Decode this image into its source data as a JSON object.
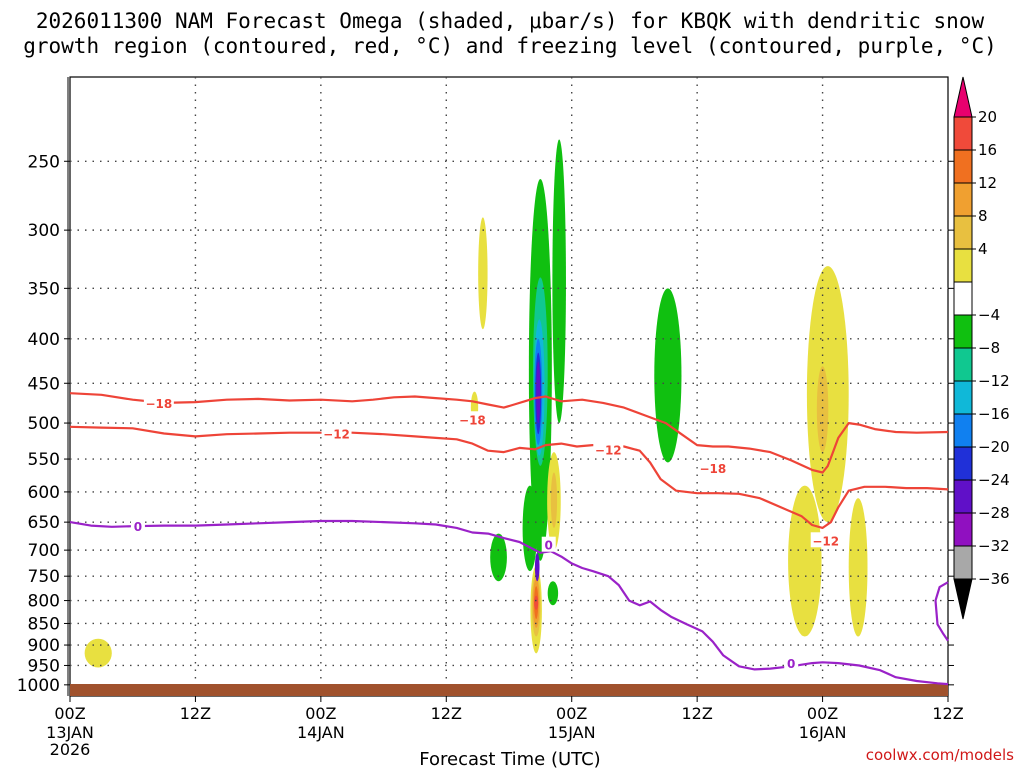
{
  "chart_data": {
    "type": "contour",
    "title": {
      "line1": "2026011300 NAM Forecast Omega (shaded, μbar/s) for KBQK with dendritic snow",
      "line2": "growth region (contoured, red, °C) and freezing level (contoured, purple, °C)"
    },
    "xlabel": "Forecast Time (UTC)",
    "credit": "coolwx.com/models",
    "x_unit": "forecast hour",
    "xlim": [
      0,
      84
    ],
    "y_unit": "hPa",
    "ylim": [
      1030,
      200
    ],
    "x_ticks": [
      {
        "hour": 0,
        "label": "00Z",
        "date": "13JAN",
        "year": "2026"
      },
      {
        "hour": 12,
        "label": "12Z"
      },
      {
        "hour": 24,
        "label": "00Z",
        "date": "14JAN"
      },
      {
        "hour": 36,
        "label": "12Z"
      },
      {
        "hour": 48,
        "label": "00Z",
        "date": "15JAN"
      },
      {
        "hour": 60,
        "label": "12Z"
      },
      {
        "hour": 72,
        "label": "00Z",
        "date": "16JAN"
      },
      {
        "hour": 84,
        "label": "12Z"
      }
    ],
    "y_ticks": [
      250,
      300,
      350,
      400,
      450,
      500,
      550,
      600,
      650,
      700,
      750,
      800,
      850,
      900,
      950,
      1000
    ],
    "colorbar": {
      "labels": [
        "20",
        "16",
        "12",
        "8",
        "4",
        "−4",
        "−8",
        "−12",
        "−16",
        "−20",
        "−24",
        "−28",
        "−32",
        "−36"
      ],
      "colors": [
        "#e8006e",
        "#f04a3a",
        "#f07020",
        "#f0a030",
        "#e8c040",
        "#e8e040",
        "#ffffff",
        "#10c010",
        "#10c890",
        "#10b8d8",
        "#1080f0",
        "#2030d8",
        "#6010c8",
        "#9010c0",
        "#a8a8a8",
        "#000000"
      ]
    },
    "series": [
      {
        "name": "-18C isotherm",
        "kind": "dendritic",
        "color": "#ee4438",
        "label": "−18",
        "points": [
          [
            0,
            462
          ],
          [
            3,
            464
          ],
          [
            6,
            470
          ],
          [
            9,
            474
          ],
          [
            12,
            473
          ],
          [
            15,
            470
          ],
          [
            18,
            469
          ],
          [
            21,
            471
          ],
          [
            24,
            470
          ],
          [
            27,
            472
          ],
          [
            29,
            470
          ],
          [
            31,
            467
          ],
          [
            33,
            466
          ],
          [
            35,
            468
          ],
          [
            37,
            470
          ],
          [
            38.5,
            472
          ],
          [
            40,
            476
          ],
          [
            41.5,
            480
          ],
          [
            42.5,
            476
          ],
          [
            43.5,
            472
          ],
          [
            44.5,
            468
          ],
          [
            45.5,
            466
          ],
          [
            47,
            472
          ],
          [
            49,
            470
          ],
          [
            51,
            474
          ],
          [
            53,
            480
          ],
          [
            55,
            490
          ],
          [
            57,
            500
          ],
          [
            58.5,
            515
          ],
          [
            60,
            530
          ],
          [
            61.5,
            532
          ],
          [
            63,
            532
          ],
          [
            65,
            535
          ],
          [
            67,
            540
          ],
          [
            69,
            552
          ],
          [
            71,
            566
          ],
          [
            72,
            570
          ],
          [
            72.5,
            560
          ],
          [
            73,
            540
          ],
          [
            73.5,
            520
          ],
          [
            74.5,
            500
          ],
          [
            75.5,
            502
          ],
          [
            77,
            508
          ],
          [
            79,
            512
          ],
          [
            81,
            513
          ],
          [
            84,
            512
          ]
        ]
      },
      {
        "name": "-12C isotherm",
        "kind": "dendritic",
        "color": "#ee4438",
        "label": "−12",
        "points": [
          [
            0,
            505
          ],
          [
            3,
            506
          ],
          [
            6,
            507
          ],
          [
            9,
            514
          ],
          [
            12,
            518
          ],
          [
            15,
            515
          ],
          [
            18,
            514
          ],
          [
            21,
            513
          ],
          [
            24,
            513
          ],
          [
            27,
            513
          ],
          [
            30,
            515
          ],
          [
            33,
            518
          ],
          [
            35,
            520
          ],
          [
            37,
            522
          ],
          [
            38.5,
            528
          ],
          [
            40,
            538
          ],
          [
            41.5,
            540
          ],
          [
            43,
            534
          ],
          [
            44.5,
            536
          ],
          [
            45.5,
            530
          ],
          [
            47,
            528
          ],
          [
            48.5,
            532
          ],
          [
            50,
            530
          ],
          [
            51.5,
            530
          ],
          [
            53,
            532
          ],
          [
            54.5,
            538
          ],
          [
            55.5,
            555
          ],
          [
            56.5,
            580
          ],
          [
            58,
            598
          ],
          [
            60,
            602
          ],
          [
            62,
            602
          ],
          [
            64,
            603
          ],
          [
            66,
            610
          ],
          [
            68,
            625
          ],
          [
            70,
            640
          ],
          [
            71,
            655
          ],
          [
            72,
            660
          ],
          [
            72.8,
            650
          ],
          [
            73.5,
            625
          ],
          [
            74.5,
            598
          ],
          [
            76,
            592
          ],
          [
            78,
            592
          ],
          [
            80,
            594
          ],
          [
            82,
            594
          ],
          [
            84,
            596
          ]
        ]
      },
      {
        "name": "0C freezing level",
        "kind": "freezing",
        "color": "#9a22c8",
        "label": "0",
        "points": [
          [
            0,
            650
          ],
          [
            2,
            656
          ],
          [
            4,
            658
          ],
          [
            6,
            657
          ],
          [
            9,
            656
          ],
          [
            12,
            656
          ],
          [
            15,
            654
          ],
          [
            18,
            652
          ],
          [
            21,
            650
          ],
          [
            24,
            648
          ],
          [
            27,
            648
          ],
          [
            30,
            650
          ],
          [
            33,
            652
          ],
          [
            35,
            654
          ],
          [
            37,
            660
          ],
          [
            38.5,
            668
          ],
          [
            40,
            670
          ],
          [
            41.5,
            678
          ],
          [
            43,
            685
          ],
          [
            44,
            695
          ],
          [
            45,
            705
          ],
          [
            46,
            702
          ],
          [
            47,
            712
          ],
          [
            48,
            725
          ],
          [
            49,
            734
          ],
          [
            50,
            740
          ],
          [
            51.5,
            750
          ],
          [
            52.5,
            768
          ],
          [
            53.5,
            800
          ],
          [
            54.5,
            810
          ],
          [
            55.5,
            802
          ],
          [
            56.5,
            820
          ],
          [
            57.5,
            835
          ],
          [
            59,
            852
          ],
          [
            60.5,
            868
          ],
          [
            61.5,
            892
          ],
          [
            62.5,
            925
          ],
          [
            64,
            952
          ],
          [
            65.5,
            960
          ],
          [
            67,
            958
          ],
          [
            69,
            952
          ],
          [
            71,
            944
          ],
          [
            72,
            942
          ],
          [
            73.5,
            944
          ],
          [
            75.5,
            950
          ],
          [
            77.5,
            962
          ],
          [
            79,
            980
          ],
          [
            81,
            990
          ],
          [
            83,
            996
          ],
          [
            84,
            998
          ]
        ]
      },
      {
        "name": "0C freezing level (right edge)",
        "kind": "freezing",
        "color": "#9a22c8",
        "label": "",
        "points": [
          [
            84,
            762
          ],
          [
            83.2,
            772
          ],
          [
            82.8,
            800
          ],
          [
            83,
            852
          ],
          [
            83.5,
            872
          ],
          [
            84,
            890
          ]
        ]
      }
    ],
    "omega_cells": [
      {
        "hour": 39.5,
        "p_top": 290,
        "p_bot": 390,
        "halfwidth_h": 0.45,
        "color": "#e8e040"
      },
      {
        "hour": 38.7,
        "p_top": 460,
        "p_bot": 500,
        "halfwidth_h": 0.35,
        "color": "#e8e040"
      },
      {
        "hour": 2.7,
        "p_top": 885,
        "p_bot": 955,
        "halfwidth_h": 1.3,
        "color": "#e8e040"
      },
      {
        "hour": 45.0,
        "p_top": 262,
        "p_bot": 720,
        "halfwidth_h": 1.1,
        "color": "#10c010"
      },
      {
        "hour": 46.8,
        "p_top": 236,
        "p_bot": 500,
        "halfwidth_h": 0.65,
        "color": "#10c010"
      },
      {
        "hour": 44.0,
        "p_top": 590,
        "p_bot": 740,
        "halfwidth_h": 0.7,
        "color": "#10c010"
      },
      {
        "hour": 41.0,
        "p_top": 670,
        "p_bot": 760,
        "halfwidth_h": 0.8,
        "color": "#10c010"
      },
      {
        "hour": 46.2,
        "p_top": 760,
        "p_bot": 810,
        "halfwidth_h": 0.5,
        "color": "#10c010"
      },
      {
        "hour": 57.2,
        "p_top": 350,
        "p_bot": 555,
        "halfwidth_h": 1.3,
        "color": "#10c010"
      },
      {
        "hour": 45.0,
        "p_top": 340,
        "p_bot": 560,
        "halfwidth_h": 0.7,
        "color": "#10c890"
      },
      {
        "hour": 44.9,
        "p_top": 380,
        "p_bot": 545,
        "halfwidth_h": 0.5,
        "color": "#10b8d8"
      },
      {
        "hour": 44.8,
        "p_top": 400,
        "p_bot": 530,
        "halfwidth_h": 0.38,
        "color": "#1080f0"
      },
      {
        "hour": 44.8,
        "p_top": 415,
        "p_bot": 515,
        "halfwidth_h": 0.28,
        "color": "#2030d8"
      },
      {
        "hour": 44.8,
        "p_top": 425,
        "p_bot": 500,
        "halfwidth_h": 0.18,
        "color": "#6010c8"
      },
      {
        "hour": 46.3,
        "p_top": 540,
        "p_bot": 700,
        "halfwidth_h": 0.65,
        "color": "#e8e040"
      },
      {
        "hour": 46.3,
        "p_top": 570,
        "p_bot": 660,
        "halfwidth_h": 0.3,
        "color": "#e8c040"
      },
      {
        "hour": 44.6,
        "p_top": 730,
        "p_bot": 920,
        "halfwidth_h": 0.55,
        "color": "#e8e040"
      },
      {
        "hour": 44.6,
        "p_top": 745,
        "p_bot": 880,
        "halfwidth_h": 0.42,
        "color": "#e8c040"
      },
      {
        "hour": 44.6,
        "p_top": 755,
        "p_bot": 860,
        "halfwidth_h": 0.32,
        "color": "#f0a030"
      },
      {
        "hour": 44.6,
        "p_top": 770,
        "p_bot": 840,
        "halfwidth_h": 0.2,
        "color": "#f07020"
      },
      {
        "hour": 44.6,
        "p_top": 790,
        "p_bot": 820,
        "halfwidth_h": 0.1,
        "color": "#f04a3a"
      },
      {
        "hour": 44.7,
        "p_top": 705,
        "p_bot": 760,
        "halfwidth_h": 0.22,
        "color": "#6010c8"
      },
      {
        "hour": 72.5,
        "p_top": 330,
        "p_bot": 650,
        "halfwidth_h": 2.0,
        "color": "#e8e040"
      },
      {
        "hour": 72.0,
        "p_top": 430,
        "p_bot": 540,
        "halfwidth_h": 0.55,
        "color": "#e8c040"
      },
      {
        "hour": 70.3,
        "p_top": 590,
        "p_bot": 880,
        "halfwidth_h": 1.6,
        "color": "#e8e040"
      },
      {
        "hour": 75.4,
        "p_top": 610,
        "p_bot": 880,
        "halfwidth_h": 0.9,
        "color": "#e8e040"
      }
    ],
    "contour_labels": [
      {
        "series": 0,
        "hour": 8.5,
        "p": 474,
        "text": "−18"
      },
      {
        "series": 0,
        "hour": 38.5,
        "p": 495,
        "text": "−18"
      },
      {
        "series": 0,
        "hour": 61.5,
        "p": 563,
        "text": "−18"
      },
      {
        "series": 1,
        "hour": 25.5,
        "p": 514,
        "text": "−12"
      },
      {
        "series": 1,
        "hour": 51.5,
        "p": 536,
        "text": "−12"
      },
      {
        "series": 1,
        "hour": 72.3,
        "p": 682,
        "text": "−12"
      },
      {
        "series": 2,
        "hour": 6.5,
        "p": 657,
        "text": "0"
      },
      {
        "series": 2,
        "hour": 45.8,
        "p": 690,
        "text": "0"
      },
      {
        "series": 2,
        "hour": 69.0,
        "p": 944,
        "text": "0"
      }
    ]
  }
}
